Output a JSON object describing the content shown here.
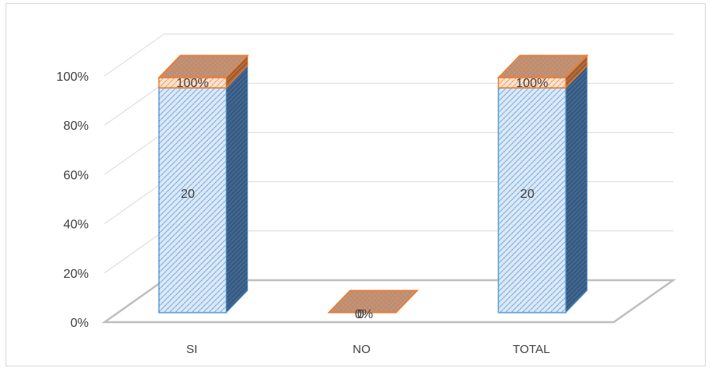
{
  "chart_data": {
    "type": "bar",
    "style": "3d-stacked-100-percent",
    "categories": [
      "SI",
      "NO",
      "TOTAL"
    ],
    "series": [
      {
        "values": [
          20,
          0,
          20
        ],
        "labels": [
          "20",
          "",
          "20"
        ],
        "color": "#5b9bd5",
        "pattern": "diagonal-hatch"
      },
      {
        "values": [
          100,
          0,
          100
        ],
        "labels": [
          "100%",
          "0%",
          "100%"
        ],
        "color": "#ed7d31",
        "pattern": "dotted-hatch"
      }
    ],
    "y_ticks": [
      "0%",
      "20%",
      "40%",
      "60%",
      "80%",
      "100%"
    ],
    "ylim": [
      0,
      100
    ],
    "grid": true,
    "legend": "none",
    "title": "",
    "xlabel": "",
    "ylabel": ""
  }
}
